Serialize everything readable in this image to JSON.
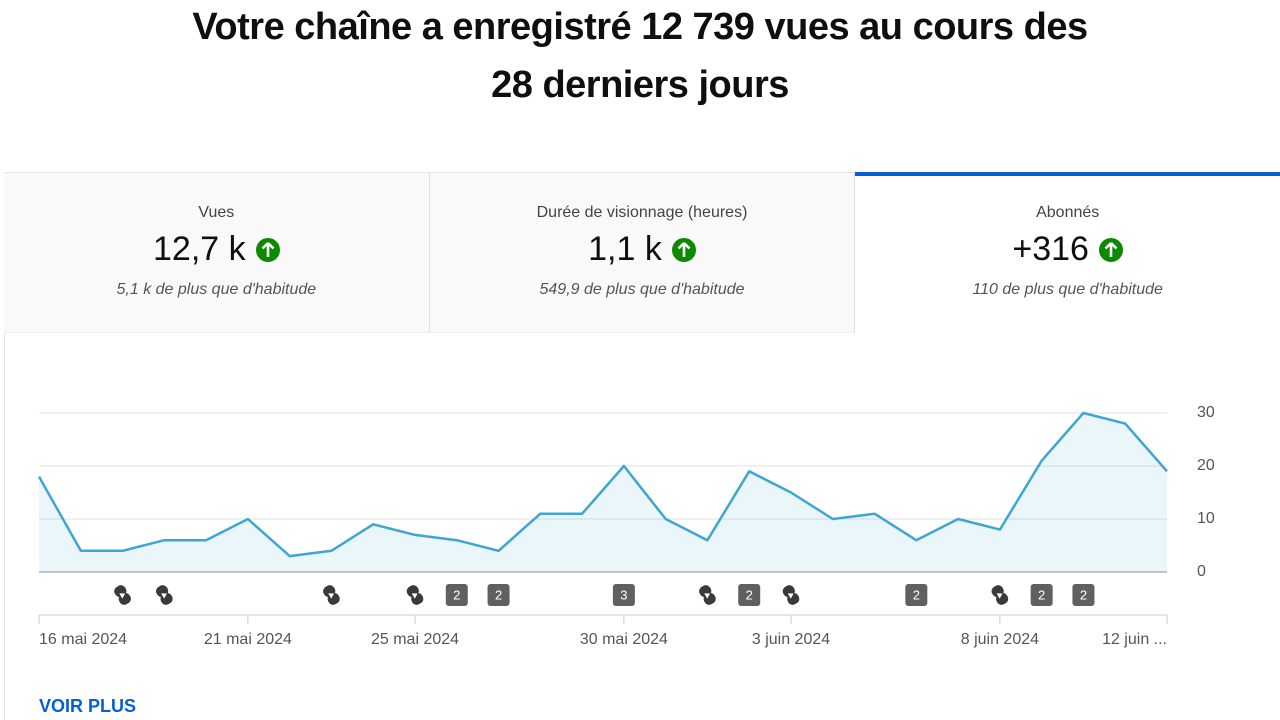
{
  "header": {
    "title": [
      "Votre chaîne a enregistré 12 739 vues au cours des",
      "28 derniers jours"
    ]
  },
  "tabs": [
    {
      "label": "Vues",
      "value": "12,7 k",
      "note": "5,1 k de plus que d'habitude"
    },
    {
      "label": "Durée de visionnage (heures)",
      "value": "1,1 k",
      "note": "549,9 de plus que d'habitude"
    },
    {
      "label": "Abonnés",
      "value": "+316",
      "note": "110 de plus que d'habitude"
    }
  ],
  "chart_data": {
    "type": "line",
    "categories": [
      "16 mai 2024",
      null,
      null,
      null,
      null,
      "21 mai 2024",
      null,
      null,
      null,
      "25 mai 2024",
      null,
      null,
      null,
      null,
      "30 mai 2024",
      null,
      null,
      null,
      "3 juin 2024",
      null,
      null,
      null,
      null,
      "8 juin 2024",
      null,
      null,
      null,
      "12 juin ..."
    ],
    "series": [
      {
        "name": "Abonnés",
        "color": "#3ea6d0",
        "values": [
          18,
          4,
          4,
          6,
          6,
          10,
          3,
          4,
          9,
          7,
          6,
          4,
          11,
          11,
          20,
          10,
          6,
          19,
          15,
          10,
          11,
          6,
          10,
          8,
          21,
          30,
          28,
          19
        ]
      }
    ],
    "publications": [
      null,
      null,
      1,
      1,
      null,
      null,
      null,
      1,
      null,
      1,
      2,
      2,
      null,
      null,
      3,
      null,
      1,
      2,
      1,
      null,
      null,
      2,
      null,
      1,
      2,
      2,
      null,
      null
    ],
    "ylim": [
      0,
      30
    ],
    "yticks": [
      0,
      10,
      20,
      30
    ],
    "grid": true
  },
  "footer": {
    "link": "VOIR PLUS"
  }
}
